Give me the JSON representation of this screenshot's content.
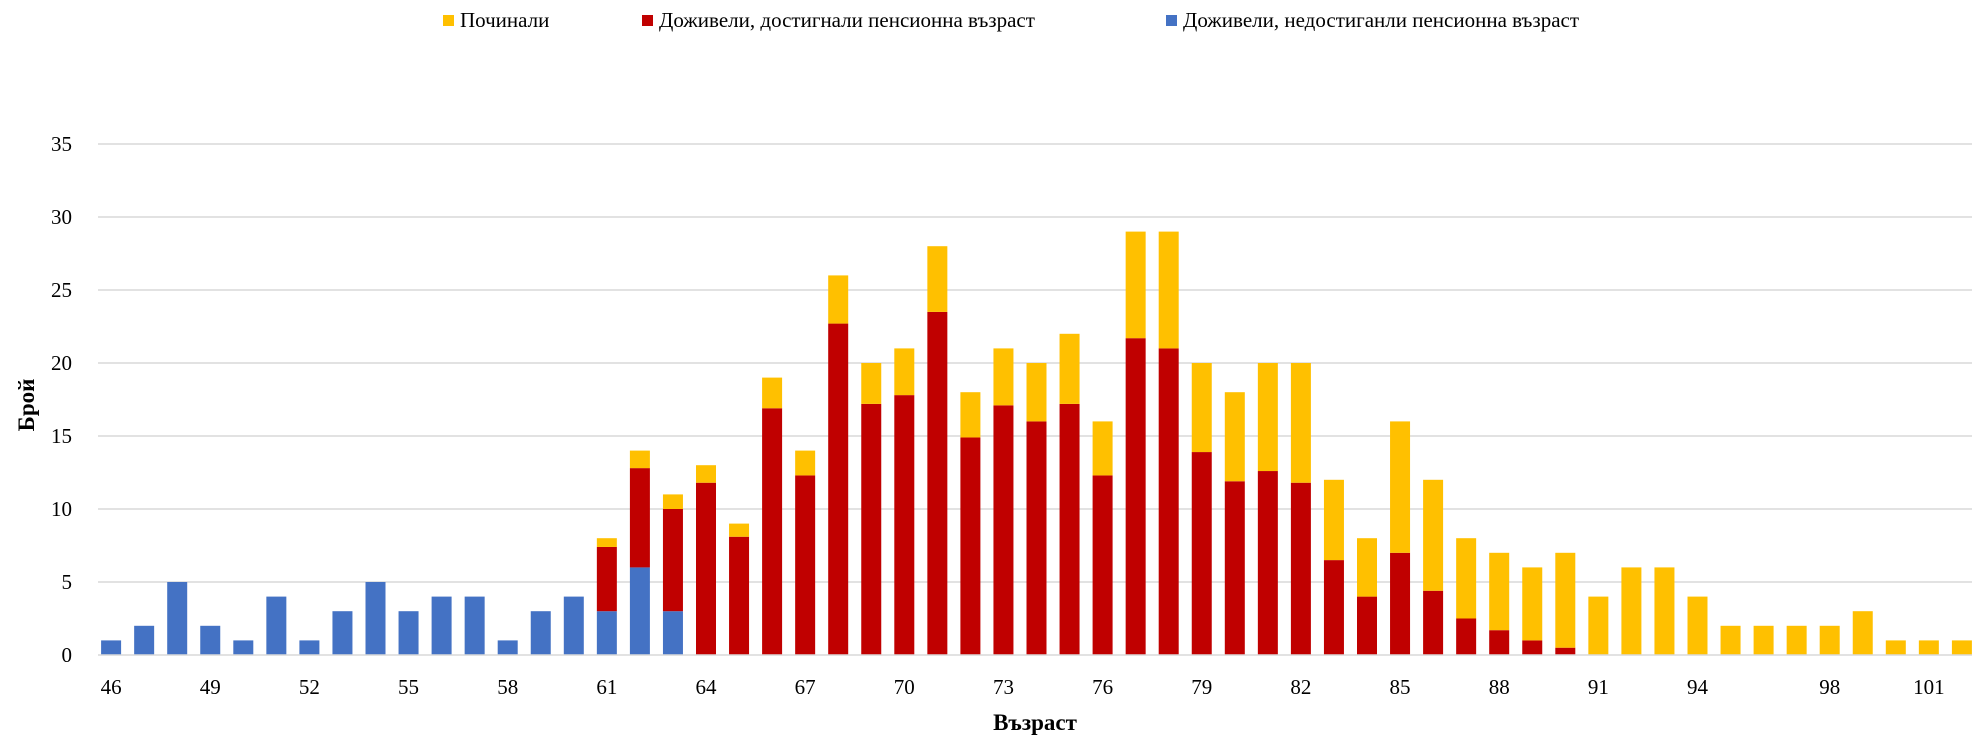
{
  "chart_data": {
    "type": "bar",
    "stacked": true,
    "xlabel": "Възраст",
    "ylabel": "Брой",
    "ylim": [
      0,
      35
    ],
    "yticks": [
      0,
      5,
      10,
      15,
      20,
      25,
      30,
      35
    ],
    "grid": true,
    "legend_position": "top",
    "x": [
      46,
      47,
      48,
      49,
      50,
      51,
      52,
      53,
      54,
      55,
      56,
      57,
      58,
      59,
      60,
      61,
      62,
      63,
      64,
      65,
      66,
      67,
      68,
      69,
      70,
      71,
      72,
      73,
      74,
      75,
      76,
      77,
      78,
      79,
      80,
      81,
      82,
      83,
      84,
      85,
      86,
      87,
      88,
      89,
      90,
      91,
      92,
      93,
      94,
      95,
      96,
      97,
      98,
      99,
      100,
      101,
      102,
      103
    ],
    "xtick_labels": [
      "46",
      "49",
      "52",
      "55",
      "58",
      "61",
      "64",
      "67",
      "70",
      "73",
      "76",
      "79",
      "82",
      "85",
      "88",
      "91",
      "94",
      "98",
      "101"
    ],
    "xtick_values": [
      46,
      49,
      52,
      55,
      58,
      61,
      64,
      67,
      70,
      73,
      76,
      79,
      82,
      85,
      88,
      91,
      94,
      98,
      101
    ],
    "series": [
      {
        "name": "Доживели, недостиганли пенсионна възраст",
        "color": "#4472C4",
        "values": [
          1,
          2,
          5,
          2,
          1,
          4,
          1,
          3,
          5,
          3,
          4,
          4,
          1,
          3,
          4,
          3,
          6,
          3,
          0,
          0,
          0,
          0,
          0,
          0,
          0,
          0,
          0,
          0,
          0,
          0,
          0,
          0,
          0,
          0,
          0,
          0,
          0,
          0,
          0,
          0,
          0,
          0,
          0,
          0,
          0,
          0,
          0,
          0,
          0,
          0,
          0,
          0,
          0,
          0,
          0,
          0,
          0,
          0
        ]
      },
      {
        "name": "Доживели, достигнали пенсионна възраст",
        "color": "#C00000",
        "values": [
          0,
          0,
          0,
          0,
          0,
          0,
          0,
          0,
          0,
          0,
          0,
          0,
          0,
          0,
          0,
          4.4,
          6.8,
          7,
          11.8,
          8.1,
          16.9,
          12.3,
          22.7,
          17.2,
          17.8,
          23.5,
          14.9,
          17.1,
          16,
          17.2,
          12.3,
          21.7,
          21,
          13.9,
          11.9,
          12.6,
          11.8,
          6.5,
          4,
          7,
          4.4,
          2.5,
          1.7,
          1,
          0.5,
          0,
          0,
          0,
          0,
          0,
          0,
          0,
          0,
          0,
          0,
          0,
          0,
          0
        ]
      },
      {
        "name": "Починали",
        "color": "#FFC000",
        "values": [
          0,
          0,
          0,
          0,
          0,
          0,
          0,
          0,
          0,
          0,
          0,
          0,
          0,
          0,
          0,
          0.6,
          1.2,
          1,
          1.2,
          0.9,
          2.1,
          1.7,
          3.3,
          2.8,
          3.2,
          4.5,
          3.1,
          3.9,
          4,
          4.8,
          3.7,
          7.3,
          8,
          6.1,
          6.1,
          7.4,
          8.2,
          5.5,
          4,
          9,
          7.6,
          5.5,
          5.3,
          5,
          6.5,
          4,
          6,
          6,
          4,
          2,
          2,
          2,
          2,
          3,
          1,
          1,
          1,
          0
        ]
      }
    ]
  },
  "legend": {
    "items": [
      {
        "label": "Починали",
        "color": "#FFC000"
      },
      {
        "label": "Доживели, достигнали пенсионна възраст",
        "color": "#C00000"
      },
      {
        "label": "Доживели, недостиганли пенсионна възраст",
        "color": "#4472C4"
      }
    ]
  }
}
